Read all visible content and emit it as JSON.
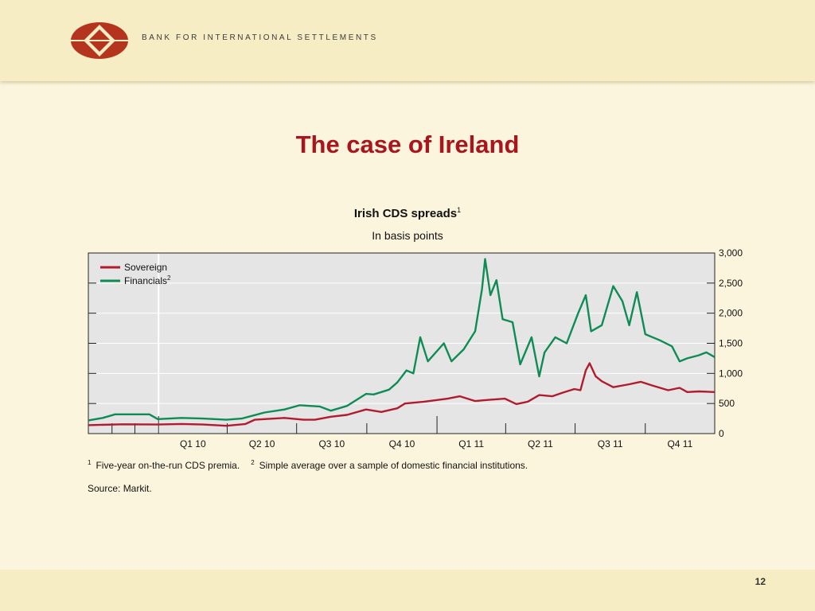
{
  "header": {
    "org_name": "BANK FOR INTERNATIONAL SETTLEMENTS",
    "logo_icon": "bis-logo-icon"
  },
  "slide_title": "The case of Ireland",
  "chart": {
    "title": "Irish CDS spreads",
    "title_footnote": "1",
    "subtitle": "In basis points"
  },
  "chart_data": {
    "type": "line",
    "y_axis_position": "right",
    "ylim": [
      0,
      3000
    ],
    "y_ticks": [
      0,
      500,
      1000,
      1500,
      2000,
      2500,
      3000
    ],
    "y_tick_labels": [
      "0",
      "500",
      "1,000",
      "1,500",
      "2,000",
      "2,500",
      "3,000"
    ],
    "x_range": [
      "2009-10-01",
      "2011-12-31"
    ],
    "x_tick_labels": [
      "Q1 10",
      "Q2 10",
      "Q3 10",
      "Q4 10",
      "Q1 11",
      "Q2 11",
      "Q3 11",
      "Q4 11"
    ],
    "grid": "horizontal",
    "legend": "top-left",
    "background": "#e5e5e5",
    "series": [
      {
        "name": "Sovereign",
        "color": "#b01c2e",
        "points": [
          [
            "2009-10-01",
            140
          ],
          [
            "2009-11-15",
            155
          ],
          [
            "2009-12-31",
            150
          ],
          [
            "2010-01-31",
            160
          ],
          [
            "2010-02-28",
            150
          ],
          [
            "2010-03-31",
            130
          ],
          [
            "2010-04-25",
            160
          ],
          [
            "2010-05-07",
            230
          ],
          [
            "2010-05-20",
            240
          ],
          [
            "2010-06-15",
            260
          ],
          [
            "2010-07-10",
            230
          ],
          [
            "2010-07-25",
            230
          ],
          [
            "2010-08-15",
            280
          ],
          [
            "2010-09-05",
            310
          ],
          [
            "2010-09-30",
            400
          ],
          [
            "2010-10-20",
            360
          ],
          [
            "2010-11-10",
            420
          ],
          [
            "2010-11-20",
            500
          ],
          [
            "2010-12-15",
            530
          ],
          [
            "2011-01-15",
            580
          ],
          [
            "2011-01-31",
            620
          ],
          [
            "2011-02-20",
            540
          ],
          [
            "2011-03-10",
            560
          ],
          [
            "2011-03-31",
            580
          ],
          [
            "2011-04-15",
            490
          ],
          [
            "2011-04-30",
            530
          ],
          [
            "2011-05-15",
            640
          ],
          [
            "2011-06-01",
            620
          ],
          [
            "2011-06-15",
            680
          ],
          [
            "2011-06-30",
            740
          ],
          [
            "2011-07-08",
            720
          ],
          [
            "2011-07-15",
            1050
          ],
          [
            "2011-07-20",
            1170
          ],
          [
            "2011-07-28",
            950
          ],
          [
            "2011-08-05",
            870
          ],
          [
            "2011-08-20",
            770
          ],
          [
            "2011-09-10",
            820
          ],
          [
            "2011-09-25",
            860
          ],
          [
            "2011-10-10",
            800
          ],
          [
            "2011-10-31",
            720
          ],
          [
            "2011-11-15",
            760
          ],
          [
            "2011-11-25",
            690
          ],
          [
            "2011-12-10",
            700
          ],
          [
            "2011-12-31",
            690
          ]
        ]
      },
      {
        "name": "Financials",
        "name_footnote": "2",
        "color": "#0f8c55",
        "points": [
          [
            "2009-10-01",
            220
          ],
          [
            "2009-10-20",
            260
          ],
          [
            "2009-11-05",
            320
          ],
          [
            "2009-12-20",
            320
          ],
          [
            "2009-12-31",
            240
          ],
          [
            "2010-01-31",
            260
          ],
          [
            "2010-02-28",
            250
          ],
          [
            "2010-03-31",
            230
          ],
          [
            "2010-04-20",
            250
          ],
          [
            "2010-05-05",
            300
          ],
          [
            "2010-05-20",
            350
          ],
          [
            "2010-06-15",
            400
          ],
          [
            "2010-07-05",
            470
          ],
          [
            "2010-07-31",
            450
          ],
          [
            "2010-08-15",
            380
          ],
          [
            "2010-09-05",
            460
          ],
          [
            "2010-09-30",
            660
          ],
          [
            "2010-10-10",
            650
          ],
          [
            "2010-10-30",
            730
          ],
          [
            "2010-11-10",
            850
          ],
          [
            "2010-11-22",
            1050
          ],
          [
            "2010-12-01",
            1000
          ],
          [
            "2010-12-10",
            1600
          ],
          [
            "2010-12-20",
            1200
          ],
          [
            "2011-01-10",
            1500
          ],
          [
            "2011-01-20",
            1200
          ],
          [
            "2011-02-05",
            1400
          ],
          [
            "2011-02-20",
            1700
          ],
          [
            "2011-03-01",
            2400
          ],
          [
            "2011-03-05",
            2900
          ],
          [
            "2011-03-12",
            2300
          ],
          [
            "2011-03-20",
            2550
          ],
          [
            "2011-03-28",
            1900
          ],
          [
            "2011-04-10",
            1850
          ],
          [
            "2011-04-20",
            1150
          ],
          [
            "2011-05-05",
            1600
          ],
          [
            "2011-05-15",
            950
          ],
          [
            "2011-05-22",
            1350
          ],
          [
            "2011-06-05",
            1600
          ],
          [
            "2011-06-20",
            1500
          ],
          [
            "2011-07-05",
            2000
          ],
          [
            "2011-07-15",
            2300
          ],
          [
            "2011-07-22",
            1700
          ],
          [
            "2011-08-05",
            1800
          ],
          [
            "2011-08-20",
            2450
          ],
          [
            "2011-09-01",
            2200
          ],
          [
            "2011-09-10",
            1800
          ],
          [
            "2011-09-20",
            2350
          ],
          [
            "2011-10-01",
            1650
          ],
          [
            "2011-10-20",
            1550
          ],
          [
            "2011-11-05",
            1450
          ],
          [
            "2011-11-15",
            1200
          ],
          [
            "2011-11-25",
            1250
          ],
          [
            "2011-12-10",
            1300
          ],
          [
            "2011-12-20",
            1350
          ],
          [
            "2011-12-31",
            1270
          ]
        ]
      }
    ]
  },
  "footnotes": {
    "n1_marker": "1",
    "n1_text": "Five-year on-the-run CDS premia.",
    "n2_marker": "2",
    "n2_text": "Simple average over a sample of domestic financial institutions."
  },
  "source": "Source: Markit.",
  "page_number": "12"
}
